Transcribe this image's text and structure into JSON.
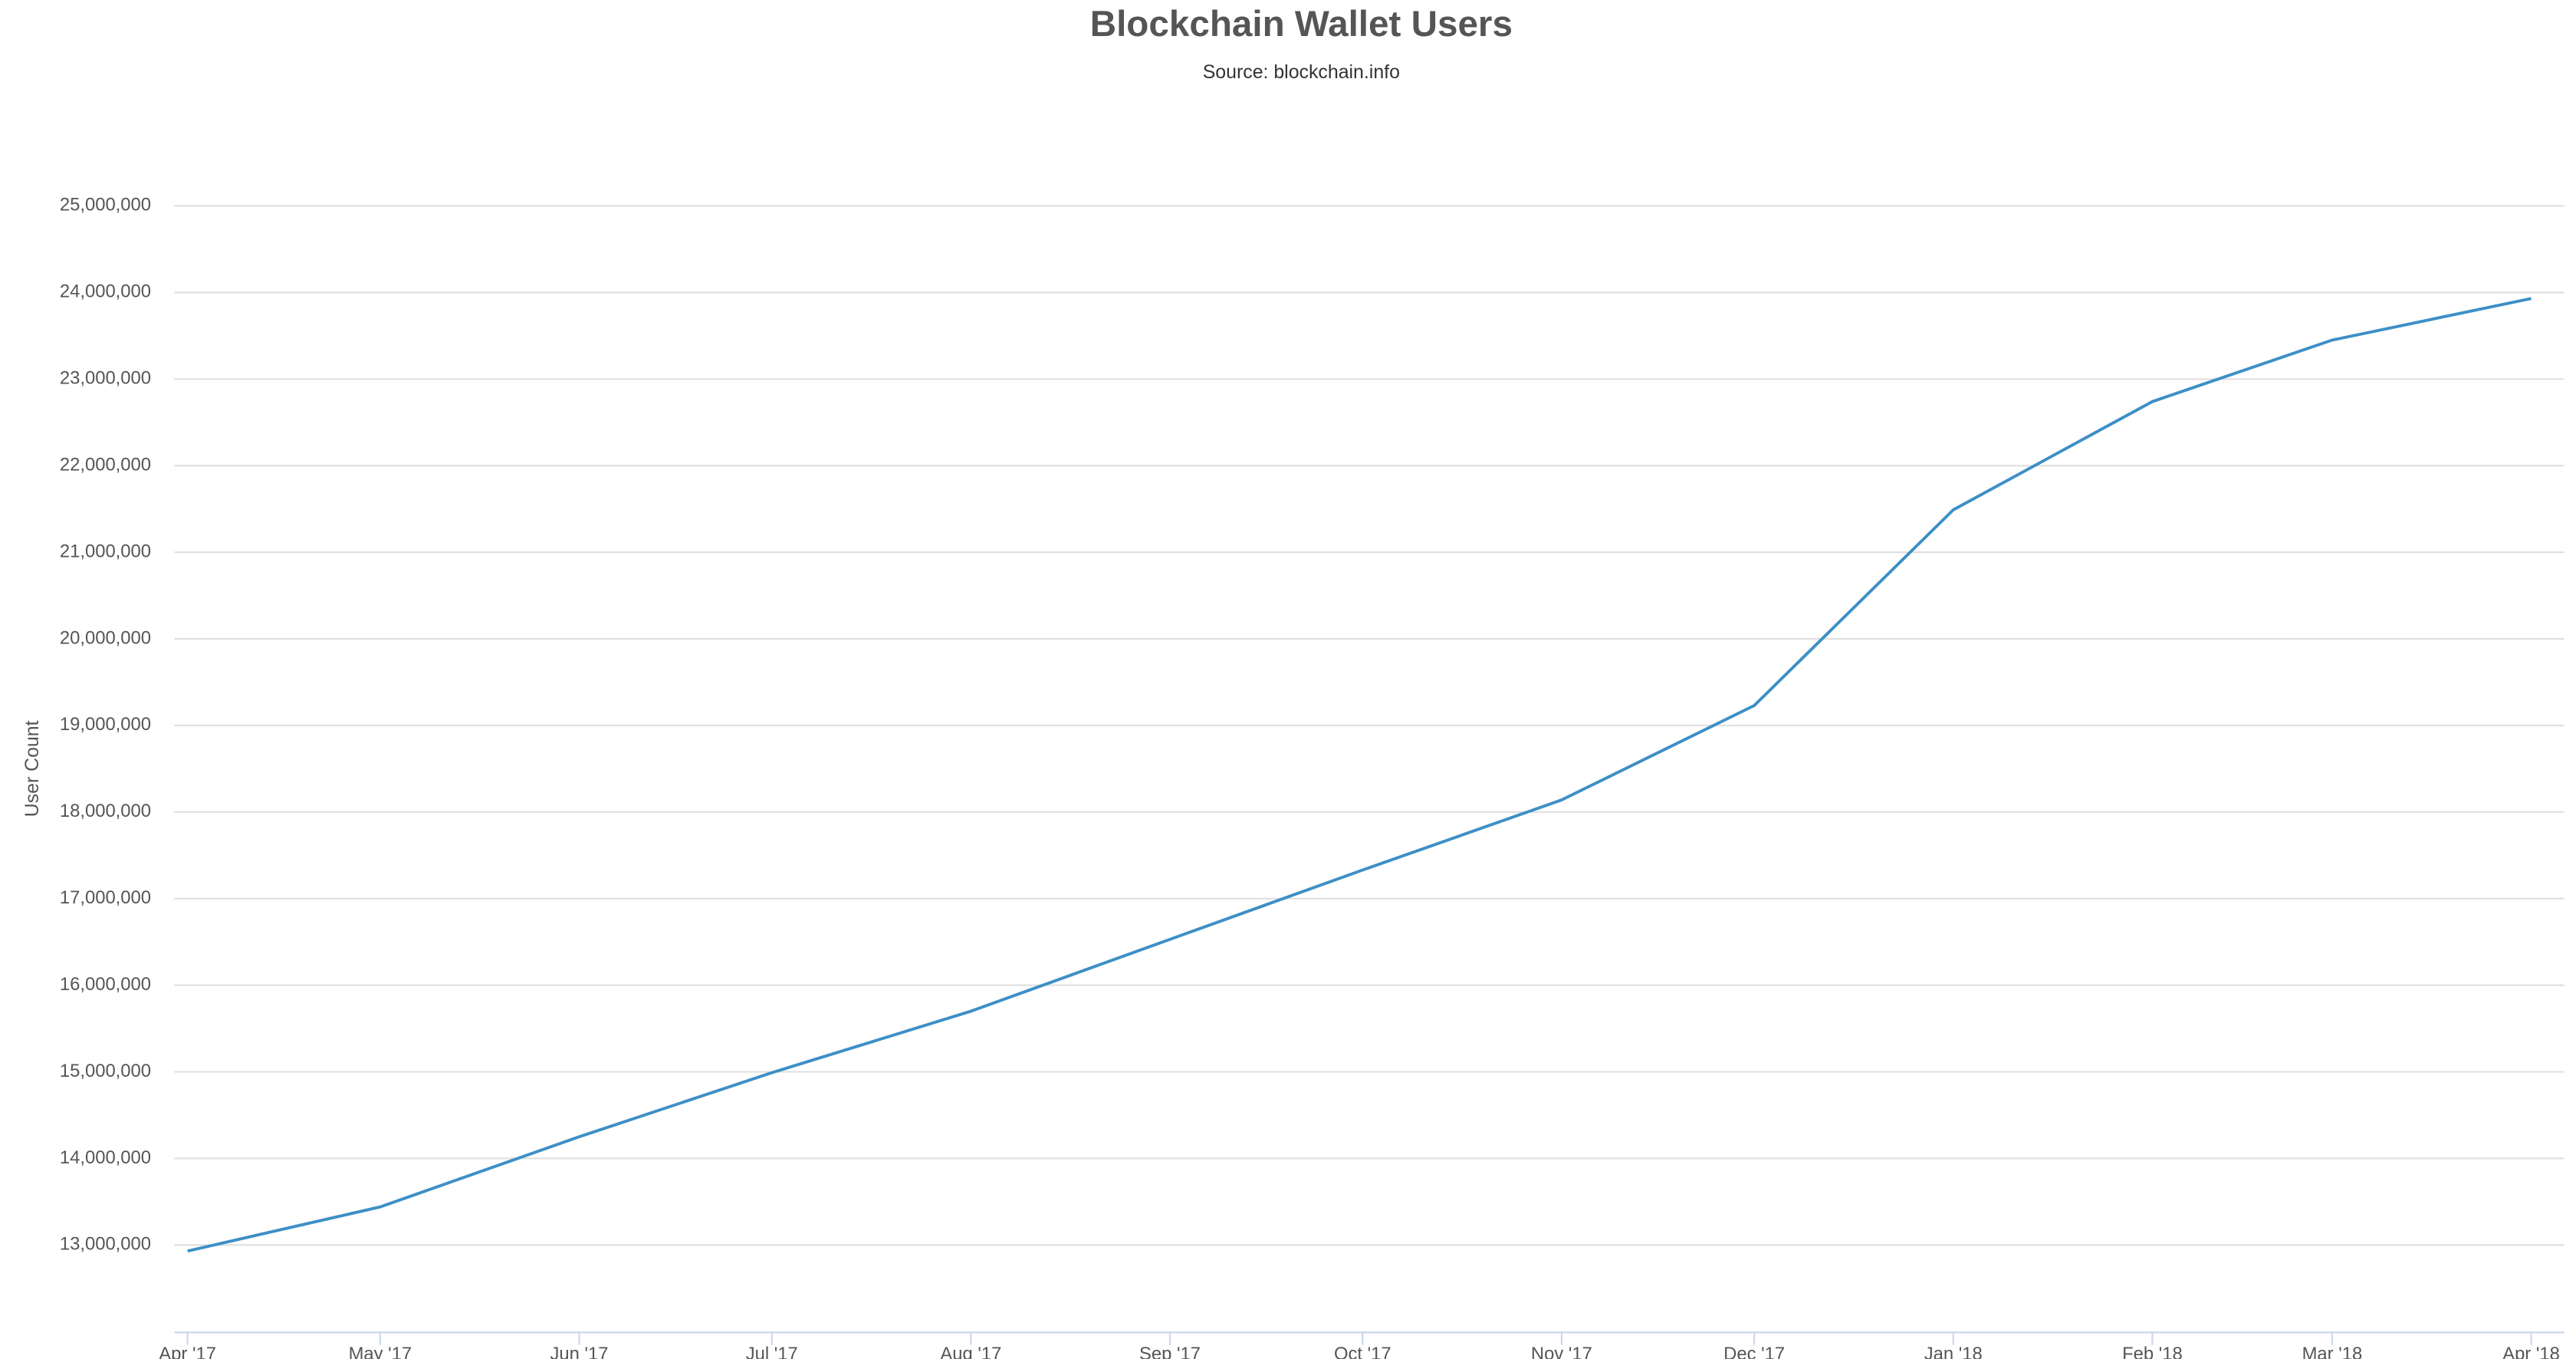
{
  "chart_data": {
    "type": "line",
    "title": "Blockchain Wallet Users",
    "subtitle": "Source: blockchain.info",
    "y_label": "User Count",
    "x": [
      "2017-04",
      "2017-05",
      "2017-06",
      "2017-07",
      "2017-08",
      "2017-09",
      "2017-10",
      "2017-11",
      "2017-12",
      "2018-01",
      "2018-02",
      "2018-03",
      "2018-04"
    ],
    "series": [
      {
        "name": "User Count",
        "color": "#3d8fc6",
        "values": [
          12930000,
          13440000,
          14250000,
          14990000,
          15700000,
          16530000,
          17330000,
          18140000,
          19230000,
          21490000,
          22740000,
          23450000,
          23930000
        ]
      }
    ],
    "ylim": [
      12000000,
      25000000
    ],
    "yticks": [
      {
        "value": 13000000,
        "label": "13,000,000"
      },
      {
        "value": 14000000,
        "label": "14,000,000"
      },
      {
        "value": 15000000,
        "label": "15,000,000"
      },
      {
        "value": 16000000,
        "label": "16,000,000"
      },
      {
        "value": 17000000,
        "label": "17,000,000"
      },
      {
        "value": 18000000,
        "label": "18,000,000"
      },
      {
        "value": 19000000,
        "label": "19,000,000"
      },
      {
        "value": 20000000,
        "label": "20,000,000"
      },
      {
        "value": 21000000,
        "label": "21,000,000"
      },
      {
        "value": 22000000,
        "label": "22,000,000"
      },
      {
        "value": 23000000,
        "label": "23,000,000"
      },
      {
        "value": 24000000,
        "label": "24,000,000"
      },
      {
        "value": 25000000,
        "label": "25,000,000"
      }
    ],
    "xticks": [
      {
        "value": "2017-04",
        "label": "Apr '17"
      },
      {
        "value": "2017-05",
        "label": "May '17"
      },
      {
        "value": "2017-06",
        "label": "Jun '17"
      },
      {
        "value": "2017-07",
        "label": "Jul '17"
      },
      {
        "value": "2017-08",
        "label": "Aug '17"
      },
      {
        "value": "2017-09",
        "label": "Sep '17"
      },
      {
        "value": "2017-10",
        "label": "Oct '17"
      },
      {
        "value": "2017-11",
        "label": "Nov '17"
      },
      {
        "value": "2017-12",
        "label": "Dec '17"
      },
      {
        "value": "2018-01",
        "label": "Jan '18"
      },
      {
        "value": "2018-02",
        "label": "Feb '18"
      },
      {
        "value": "2018-03",
        "label": "Mar '18"
      },
      {
        "value": "2018-04",
        "label": "Apr '18"
      }
    ],
    "grid": true
  }
}
